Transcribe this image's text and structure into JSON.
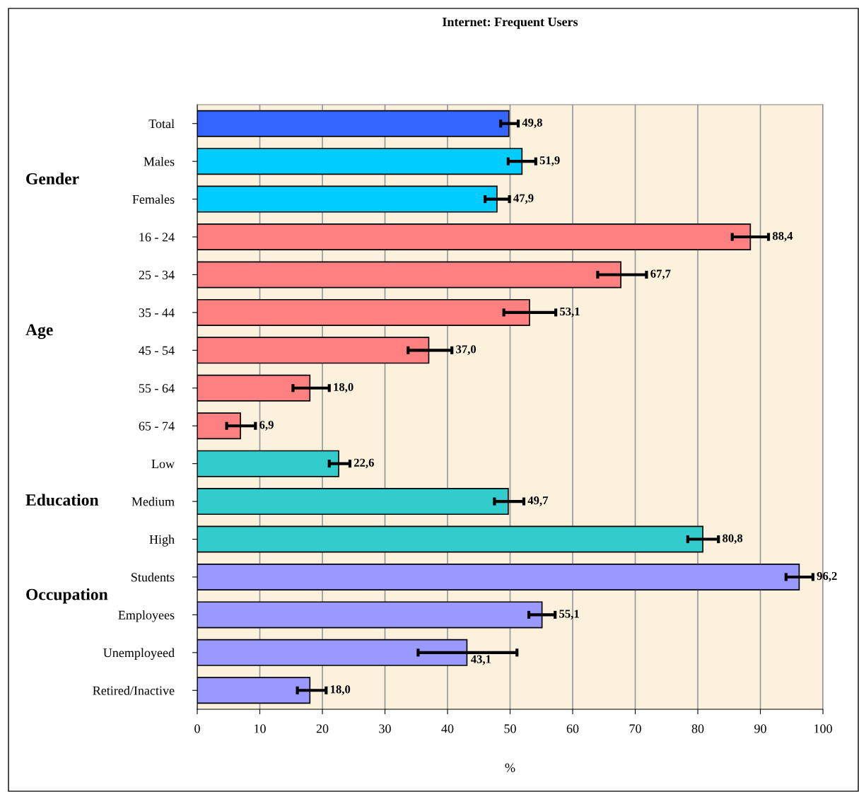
{
  "chart_data": {
    "type": "bar",
    "orientation": "horizontal",
    "title": "Internet: Frequent Users",
    "xlabel": "%",
    "categories": [
      "Total",
      "Males",
      "Females",
      "16 - 24",
      "25 - 34",
      "35 - 44",
      "45 - 54",
      "55 - 64",
      "65 - 74",
      "Low",
      "Medium",
      "High",
      "Students",
      "Employees",
      "Unemployeed",
      "Retired/Inactive"
    ],
    "values": [
      49.8,
      51.9,
      47.9,
      88.4,
      67.7,
      53.1,
      37.0,
      18.0,
      6.9,
      22.6,
      49.7,
      80.8,
      96.2,
      55.1,
      43.1,
      18.0
    ],
    "value_labels": [
      "49,8",
      "51,9",
      "47,9",
      "88,4",
      "67,7",
      "53,1",
      "37,0",
      "18,0",
      "6,9",
      "22,6",
      "49,7",
      "80,8",
      "96,2",
      "55,1",
      "43,1",
      "18,0"
    ],
    "colors": [
      "#3366ff",
      "#00ccff",
      "#00ccff",
      "#ff8080",
      "#ff8080",
      "#ff8080",
      "#ff8080",
      "#ff8080",
      "#ff8080",
      "#33cccc",
      "#33cccc",
      "#33cccc",
      "#9999ff",
      "#9999ff",
      "#9999ff",
      "#9999ff"
    ],
    "errors": [
      [
        48.5,
        51.3
      ],
      [
        49.7,
        54.1
      ],
      [
        46.0,
        49.9
      ],
      [
        85.5,
        91.3
      ],
      [
        64.0,
        71.8
      ],
      [
        49.0,
        57.3
      ],
      [
        33.7,
        40.7
      ],
      [
        15.3,
        21.1
      ],
      [
        4.7,
        9.3
      ],
      [
        21.1,
        24.4
      ],
      [
        47.5,
        52.2
      ],
      [
        78.4,
        83.3
      ],
      [
        94.1,
        98.4
      ],
      [
        53.0,
        57.2
      ],
      [
        35.3,
        51.1
      ],
      [
        16.0,
        20.6
      ]
    ],
    "annotations": [
      "Gender",
      "Age",
      "Education",
      "Occupation"
    ],
    "xlim": [
      0,
      100
    ],
    "xticks": [
      0,
      10,
      20,
      30,
      40,
      50,
      60,
      70,
      80,
      90,
      100
    ],
    "grid": "x",
    "legend": false
  }
}
